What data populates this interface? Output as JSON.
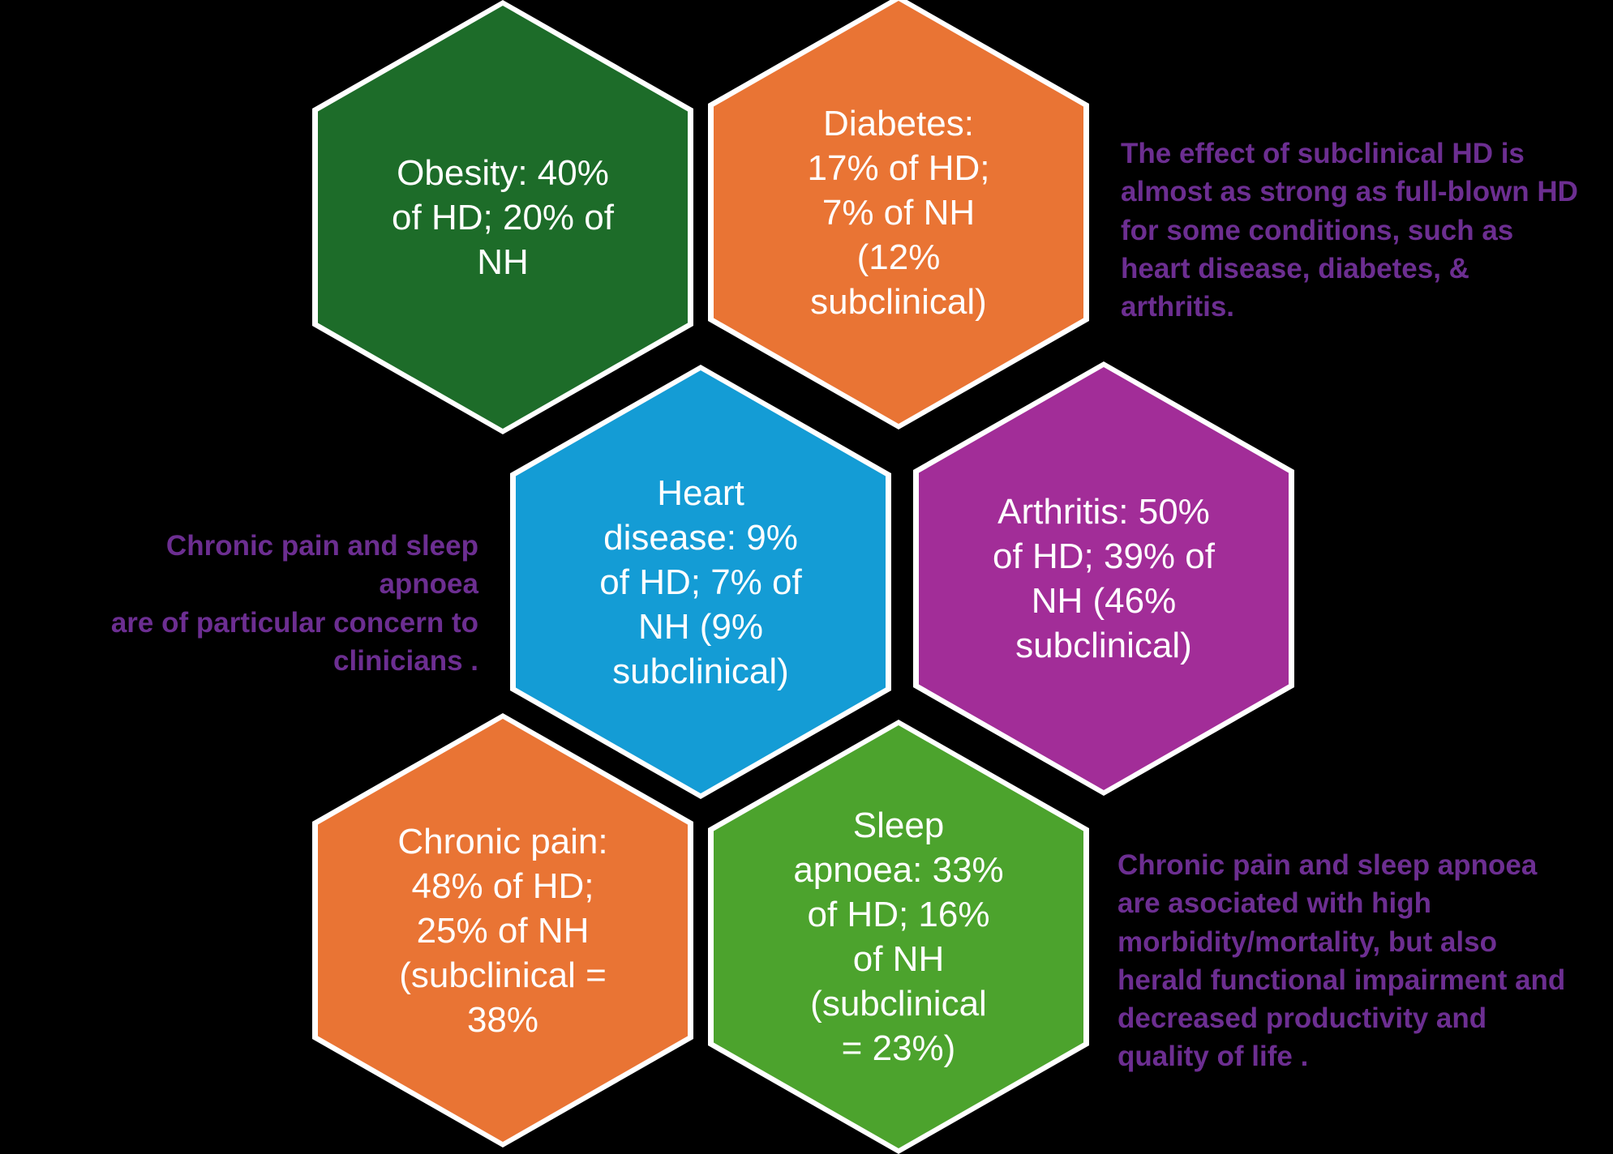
{
  "figure": {
    "background": "#000000",
    "hex_border_color": "#FFFFFF",
    "hex_text_color": "#FFFFFF",
    "annotation_color": "#6C2E91"
  },
  "hexagons": [
    {
      "name": "obesity",
      "color": "#1D6C29",
      "lines": [
        "Obesity: 40%",
        "of HD; 20% of",
        "NH"
      ]
    },
    {
      "name": "diabetes",
      "color": "#E97434",
      "lines": [
        "Diabetes:",
        "17% of HD;",
        "7% of NH",
        "(12%",
        "subclinical)"
      ]
    },
    {
      "name": "heart-disease",
      "color": "#149CD5",
      "lines": [
        "Heart",
        "disease: 9%",
        "of HD; 7% of",
        "NH (9%",
        "subclinical)"
      ]
    },
    {
      "name": "arthritis",
      "color": "#A22D98",
      "lines": [
        "Arthritis: 50%",
        "of HD; 39% of",
        "NH (46%",
        "subclinical)"
      ]
    },
    {
      "name": "chronic-pain",
      "color": "#E97434",
      "lines": [
        "Chronic pain:",
        "48% of HD;",
        "25% of NH",
        "(subclinical =",
        "38%"
      ]
    },
    {
      "name": "sleep-apnoea",
      "color": "#4CA32D",
      "lines": [
        "Sleep",
        "apnoea: 33%",
        "of HD; 16%",
        "of NH",
        "(subclinical",
        "= 23%)"
      ]
    }
  ],
  "annotations": [
    {
      "name": "subclinical-effect-note",
      "lines": [
        "The effect of subclinical HD is",
        "almost as strong as full-blown HD",
        "for some conditions, such as",
        "heart disease, diabetes, &",
        "arthritis."
      ]
    },
    {
      "name": "clinician-concern-note",
      "lines": [
        "Chronic pain and sleep apnoea",
        "are of particular concern to",
        "clinicians ."
      ]
    },
    {
      "name": "morbidity-note",
      "lines": [
        "Chronic pain and sleep apnoea",
        "are asociated with high",
        "morbidity/mortality, but also",
        "herald functional impairment and",
        "decreased productivity and",
        "quality of life ."
      ]
    }
  ]
}
